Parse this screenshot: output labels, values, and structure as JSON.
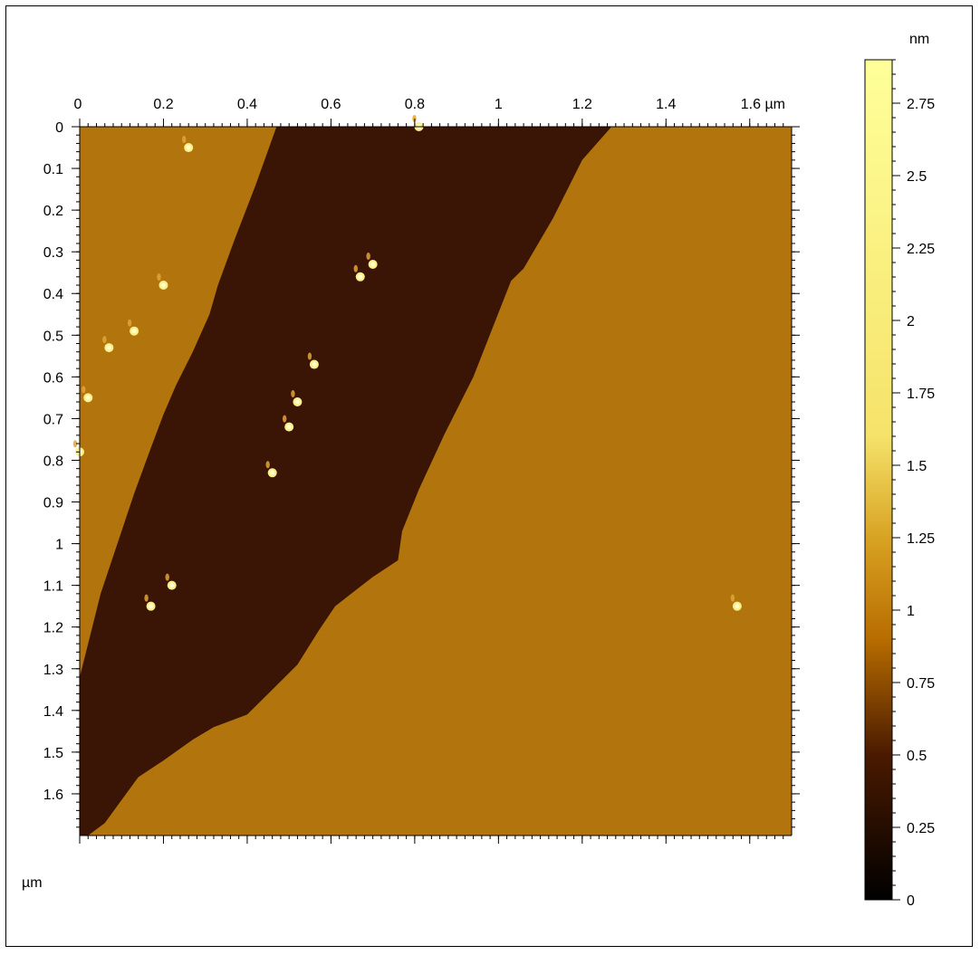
{
  "chart_data": {
    "type": "heatmap",
    "title": "",
    "x_unit_label": "µm",
    "y_unit_label": "µm",
    "xlim": [
      0,
      1.7
    ],
    "ylim": [
      0,
      1.7
    ],
    "x_ticks": [
      0,
      0.2,
      0.4,
      0.6,
      0.8,
      1,
      1.2,
      1.4,
      1.6
    ],
    "x_tick_labels": [
      "0",
      "0.2",
      "0.4",
      "0.6",
      "0.8",
      "1",
      "1.2",
      "1.4",
      "1.6 µm"
    ],
    "y_ticks": [
      0,
      0.1,
      0.2,
      0.3,
      0.4,
      0.5,
      0.6,
      0.7,
      0.8,
      0.9,
      1,
      1.1,
      1.2,
      1.3,
      1.4,
      1.5,
      1.6
    ],
    "y_tick_labels": [
      "0",
      "0.1",
      "0.2",
      "0.3",
      "0.4",
      "0.5",
      "0.6",
      "0.7",
      "0.8",
      "0.9",
      "1",
      "1.1",
      "1.2",
      "1.3",
      "1.4",
      "1.5",
      "1.6"
    ],
    "colorbar": {
      "unit": "nm",
      "range": [
        0,
        2.9
      ],
      "ticks": [
        0,
        0.25,
        0.5,
        0.75,
        1,
        1.25,
        1.5,
        1.75,
        2,
        2.25,
        2.5,
        2.75
      ],
      "tick_labels": [
        "0",
        "0.25",
        "0.5",
        "0.75",
        "1",
        "1.25",
        "1.5",
        "1.75",
        "2",
        "2.25",
        "2.5",
        "2.75"
      ],
      "colormap": [
        {
          "value": 0,
          "color": "#000000"
        },
        {
          "value": 0.5,
          "color": "#4a1a00"
        },
        {
          "value": 0.9,
          "color": "#b86d00"
        },
        {
          "value": 1.25,
          "color": "#d8a323"
        },
        {
          "value": 1.6,
          "color": "#f5e36a"
        },
        {
          "value": 2.9,
          "color": "#ffff99"
        }
      ]
    },
    "regions": [
      {
        "name": "lower-terrace",
        "height_nm": 0.3,
        "color": "#3a1505",
        "polygon": [
          [
            0.47,
            0.0
          ],
          [
            1.27,
            0.0
          ],
          [
            1.2,
            0.08
          ],
          [
            1.13,
            0.22
          ],
          [
            1.06,
            0.34
          ],
          [
            1.03,
            0.37
          ],
          [
            0.94,
            0.6
          ],
          [
            0.87,
            0.74
          ],
          [
            0.81,
            0.87
          ],
          [
            0.77,
            0.97
          ],
          [
            0.76,
            1.04
          ],
          [
            0.7,
            1.08
          ],
          [
            0.61,
            1.15
          ],
          [
            0.57,
            1.21
          ],
          [
            0.52,
            1.29
          ],
          [
            0.45,
            1.36
          ],
          [
            0.4,
            1.41
          ],
          [
            0.32,
            1.44
          ],
          [
            0.27,
            1.47
          ],
          [
            0.2,
            1.52
          ],
          [
            0.14,
            1.56
          ],
          [
            0.06,
            1.67
          ],
          [
            0.02,
            1.7
          ],
          [
            0.0,
            1.7
          ],
          [
            0.0,
            1.32
          ],
          [
            0.03,
            1.2
          ],
          [
            0.05,
            1.12
          ],
          [
            0.09,
            1.0
          ],
          [
            0.13,
            0.88
          ],
          [
            0.17,
            0.77
          ],
          [
            0.2,
            0.69
          ],
          [
            0.23,
            0.62
          ],
          [
            0.27,
            0.54
          ],
          [
            0.31,
            0.45
          ],
          [
            0.33,
            0.38
          ],
          [
            0.37,
            0.27
          ],
          [
            0.42,
            0.14
          ]
        ]
      }
    ],
    "upper_terrace": {
      "height_nm": 0.95,
      "color": "#b2750e"
    },
    "particles": [
      {
        "x": 0.26,
        "y": 0.05,
        "height_nm": 2.6
      },
      {
        "x": 0.81,
        "y": 0.0,
        "height_nm": 2.3
      },
      {
        "x": 0.7,
        "y": 0.33,
        "height_nm": 2.5
      },
      {
        "x": 0.67,
        "y": 0.36,
        "height_nm": 2.7
      },
      {
        "x": 0.2,
        "y": 0.38,
        "height_nm": 2.7
      },
      {
        "x": 0.13,
        "y": 0.49,
        "height_nm": 2.6
      },
      {
        "x": 0.07,
        "y": 0.53,
        "height_nm": 2.5
      },
      {
        "x": 0.56,
        "y": 0.57,
        "height_nm": 2.5
      },
      {
        "x": 0.02,
        "y": 0.65,
        "height_nm": 2.6
      },
      {
        "x": 0.52,
        "y": 0.66,
        "height_nm": 2.6
      },
      {
        "x": 0.5,
        "y": 0.72,
        "height_nm": 2.5
      },
      {
        "x": 0.0,
        "y": 0.78,
        "height_nm": 2.7
      },
      {
        "x": 0.46,
        "y": 0.83,
        "height_nm": 2.7
      },
      {
        "x": 0.22,
        "y": 1.1,
        "height_nm": 2.5
      },
      {
        "x": 0.17,
        "y": 1.15,
        "height_nm": 2.6
      },
      {
        "x": 1.57,
        "y": 1.15,
        "height_nm": 2.7
      }
    ]
  }
}
